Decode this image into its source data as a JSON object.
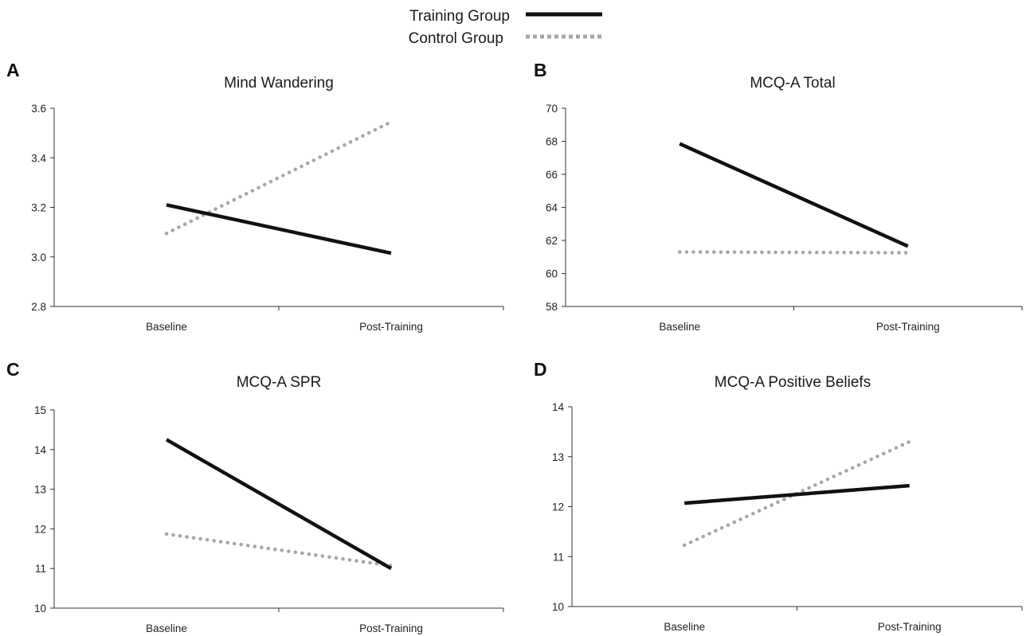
{
  "legend": {
    "placement": "top-center",
    "items": [
      {
        "label": "Training Group",
        "style": "solid",
        "color": "#111111"
      },
      {
        "label": "Control Group",
        "style": "dotted",
        "color": "#a6a6a6"
      }
    ]
  },
  "chart_data": [
    {
      "type": "line",
      "panel": "A",
      "title": "Mind Wandering",
      "categories": [
        "Baseline",
        "Post-Training"
      ],
      "ylim": [
        2.8,
        3.6
      ],
      "yticks": [
        "2.8",
        "3.0",
        "3.2",
        "3.4",
        "3.6"
      ],
      "grid": false,
      "series": [
        {
          "name": "Training Group",
          "values": [
            3.21,
            3.015
          ]
        },
        {
          "name": "Control Group",
          "values": [
            3.095,
            3.545
          ]
        }
      ]
    },
    {
      "type": "line",
      "panel": "B",
      "title": "MCQ-A Total",
      "categories": [
        "Baseline",
        "Post-Training"
      ],
      "ylim": [
        58,
        70
      ],
      "yticks": [
        "58",
        "60",
        "62",
        "64",
        "66",
        "68",
        "70"
      ],
      "grid": false,
      "series": [
        {
          "name": "Training Group",
          "values": [
            67.85,
            61.65
          ]
        },
        {
          "name": "Control Group",
          "values": [
            61.3,
            61.25
          ]
        }
      ]
    },
    {
      "type": "line",
      "panel": "C",
      "title": "MCQ-A SPR",
      "categories": [
        "Baseline",
        "Post-Training"
      ],
      "ylim": [
        10,
        15
      ],
      "yticks": [
        "10",
        "11",
        "12",
        "13",
        "14",
        "15"
      ],
      "grid": false,
      "series": [
        {
          "name": "Training Group",
          "values": [
            14.25,
            11.0
          ]
        },
        {
          "name": "Control Group",
          "values": [
            11.87,
            11.07
          ]
        }
      ]
    },
    {
      "type": "line",
      "panel": "D",
      "title": "MCQ-A Positive Beliefs",
      "categories": [
        "Baseline",
        "Post-Training"
      ],
      "ylim": [
        10,
        14
      ],
      "yticks": [
        "10",
        "11",
        "12",
        "13",
        "14"
      ],
      "grid": false,
      "series": [
        {
          "name": "Training Group",
          "values": [
            12.07,
            12.42
          ]
        },
        {
          "name": "Control Group",
          "values": [
            11.23,
            13.3
          ]
        }
      ]
    }
  ]
}
